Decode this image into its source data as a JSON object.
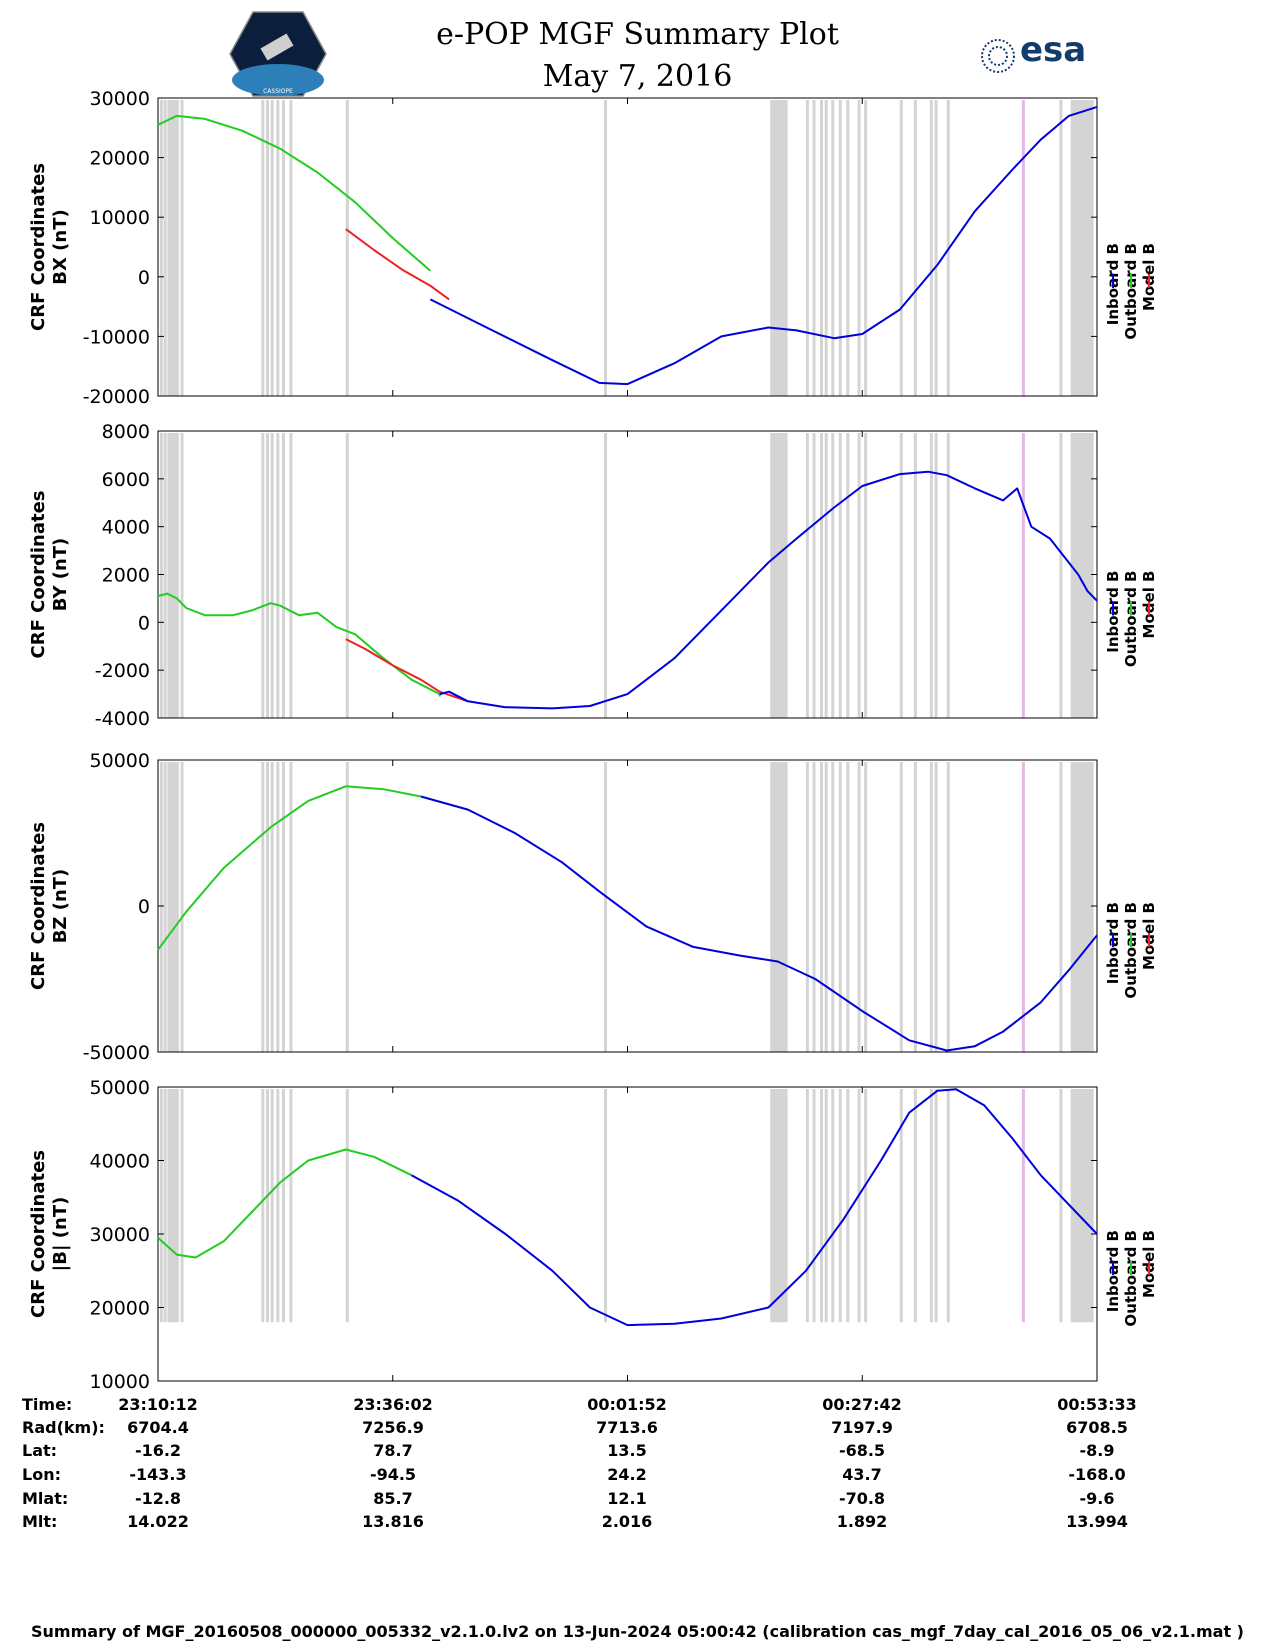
{
  "title": {
    "line1": "e-POP MGF Summary Plot",
    "line2": "May 7, 2016",
    "esa_logo_text": "esa",
    "cassiope_logo_text": "CASSIOPE"
  },
  "colors": {
    "inboard": "#0000dd",
    "outboard": "#22cc22",
    "model": "#ee2222",
    "gap": "#d4d4d4",
    "gap_highlight": "#e5b8e5"
  },
  "chart_data": [
    {
      "type": "line",
      "panel": "BX",
      "ylabel_line1": "CRF Coordinates",
      "ylabel_line2": "BX (nT)",
      "ylim": [
        -20000,
        30000
      ],
      "yticks": [
        "30000",
        "20000",
        "10000",
        "0",
        "-10000",
        "-20000"
      ],
      "ytick_values": [
        30000,
        20000,
        10000,
        0,
        -10000,
        -20000
      ],
      "legend": [
        "Inboard B",
        "Outboard B",
        "Model B"
      ],
      "series": [
        {
          "name": "Outboard B",
          "x": [
            0.0,
            0.02,
            0.05,
            0.09,
            0.13,
            0.17,
            0.21,
            0.25,
            0.29
          ],
          "values": [
            25500,
            27000,
            26500,
            24500,
            21500,
            17500,
            12500,
            6500,
            1000
          ]
        },
        {
          "name": "Model B",
          "x": [
            0.2,
            0.23,
            0.26,
            0.29,
            0.31
          ],
          "values": [
            8000,
            4500,
            1200,
            -1500,
            -3800
          ]
        },
        {
          "name": "Inboard B",
          "x": [
            0.29,
            0.35,
            0.42,
            0.47,
            0.5,
            0.55,
            0.6,
            0.65,
            0.68,
            0.72,
            0.75,
            0.79,
            0.83,
            0.87,
            0.91,
            0.94,
            0.97,
            1.0
          ],
          "values": [
            -3800,
            -8500,
            -14000,
            -17800,
            -18000,
            -14500,
            -10000,
            -8500,
            -9000,
            -10300,
            -9600,
            -5500,
            2000,
            11000,
            18000,
            23000,
            27000,
            28500
          ]
        }
      ]
    },
    {
      "type": "line",
      "panel": "BY",
      "ylabel_line1": "CRF Coordinates",
      "ylabel_line2": "BY (nT)",
      "ylim": [
        -4000,
        8000
      ],
      "yticks": [
        "8000",
        "6000",
        "4000",
        "2000",
        "0",
        "-2000",
        "-4000"
      ],
      "ytick_values": [
        8000,
        6000,
        4000,
        2000,
        0,
        -2000,
        -4000
      ],
      "legend": [
        "Inboard B",
        "Outboard B",
        "Model B"
      ],
      "series": [
        {
          "name": "Outboard B",
          "x": [
            0.0,
            0.01,
            0.02,
            0.03,
            0.05,
            0.08,
            0.1,
            0.12,
            0.13,
            0.15,
            0.17,
            0.19,
            0.21,
            0.24,
            0.27,
            0.3,
            0.3
          ],
          "values": [
            1100,
            1200,
            1000,
            600,
            300,
            300,
            500,
            800,
            700,
            300,
            400,
            -200,
            -500,
            -1500,
            -2400,
            -3000,
            -3100
          ]
        },
        {
          "name": "Model B",
          "x": [
            0.2,
            0.22,
            0.25,
            0.28,
            0.3,
            0.33
          ],
          "values": [
            -700,
            -1100,
            -1800,
            -2400,
            -2900,
            -3300
          ]
        },
        {
          "name": "Inboard B",
          "x": [
            0.3,
            0.31,
            0.33,
            0.37,
            0.42,
            0.46,
            0.5,
            0.55,
            0.6,
            0.65,
            0.68,
            0.72,
            0.75,
            0.79,
            0.82,
            0.84,
            0.87,
            0.9,
            0.915,
            0.93,
            0.95,
            0.98,
            0.99,
            1.0
          ],
          "values": [
            -3000,
            -2900,
            -3300,
            -3550,
            -3600,
            -3500,
            -3000,
            -1500,
            500,
            2500,
            3500,
            4800,
            5700,
            6200,
            6300,
            6150,
            5600,
            5100,
            5600,
            4000,
            3500,
            2000,
            1300,
            900
          ]
        }
      ]
    },
    {
      "type": "line",
      "panel": "BZ",
      "ylabel_line1": "CRF Coordinates",
      "ylabel_line2": "BZ (nT)",
      "ylim": [
        -50000,
        50000
      ],
      "yticks": [
        "50000",
        "0",
        "-50000"
      ],
      "ytick_values": [
        50000,
        0,
        -50000
      ],
      "legend": [
        "Inboard B",
        "Outboard B",
        "Model B"
      ],
      "series": [
        {
          "name": "Outboard B",
          "x": [
            0.0,
            0.03,
            0.07,
            0.12,
            0.16,
            0.2,
            0.24,
            0.28
          ],
          "values": [
            -15000,
            -2000,
            13000,
            27000,
            36000,
            41000,
            40000,
            37500
          ]
        },
        {
          "name": "Inboard B",
          "x": [
            0.28,
            0.33,
            0.38,
            0.43,
            0.47,
            0.52,
            0.57,
            0.62,
            0.66,
            0.7,
            0.75,
            0.8,
            0.84,
            0.87,
            0.9,
            0.94,
            0.97,
            1.0
          ],
          "values": [
            37500,
            33000,
            25000,
            15000,
            5000,
            -7000,
            -14000,
            -17000,
            -19000,
            -25000,
            -36000,
            -46000,
            -49500,
            -48000,
            -43000,
            -33000,
            -22000,
            -10000
          ]
        }
      ]
    },
    {
      "type": "line",
      "panel": "|B|",
      "ylabel_line1": "CRF Coordinates",
      "ylabel_line2": "|B| (nT)",
      "ylim": [
        10000,
        50000
      ],
      "yticks": [
        "50000",
        "40000",
        "30000",
        "20000",
        "10000"
      ],
      "ytick_values": [
        50000,
        40000,
        30000,
        20000,
        10000
      ],
      "legend": [
        "Inboard B",
        "Outboard B",
        "Model B"
      ],
      "series": [
        {
          "name": "Outboard B",
          "x": [
            0.0,
            0.02,
            0.04,
            0.07,
            0.1,
            0.13,
            0.16,
            0.2,
            0.23,
            0.27
          ],
          "values": [
            29500,
            27200,
            26800,
            29000,
            33000,
            37000,
            40000,
            41500,
            40500,
            38000
          ]
        },
        {
          "name": "Inboard B",
          "x": [
            0.27,
            0.32,
            0.37,
            0.42,
            0.46,
            0.5,
            0.55,
            0.6,
            0.65,
            0.69,
            0.73,
            0.77,
            0.8,
            0.83,
            0.85,
            0.88,
            0.91,
            0.94,
            0.97,
            1.0
          ],
          "values": [
            38000,
            34500,
            30000,
            25000,
            20000,
            17600,
            17800,
            18500,
            20000,
            25000,
            32000,
            40000,
            46500,
            49500,
            49700,
            47500,
            43000,
            38000,
            34000,
            30000
          ]
        }
      ]
    }
  ],
  "gap_bands": [
    0.002,
    0.006,
    0.01,
    0.013,
    0.016,
    0.019,
    0.024,
    0.11,
    0.115,
    0.12,
    0.126,
    0.132,
    0.14,
    0.2,
    0.475,
    0.652,
    0.658,
    0.662,
    0.69,
    0.697,
    0.705,
    0.71,
    0.717,
    0.725,
    0.733,
    0.745,
    0.752,
    0.79,
    0.805,
    0.822,
    0.827,
    0.84,
    0.92,
    0.96,
    0.972,
    0.98,
    0.988
  ],
  "info_table": {
    "row_labels": [
      "Time:",
      "Rad(km):",
      "Lat:",
      "Lon:",
      "Mlat:",
      "Mlt:"
    ],
    "columns": [
      [
        "23:10:12",
        "6704.4",
        "-16.2",
        "-143.3",
        "-12.8",
        "14.022"
      ],
      [
        "23:36:02",
        "7256.9",
        "78.7",
        "-94.5",
        "85.7",
        "13.816"
      ],
      [
        "00:01:52",
        "7713.6",
        "13.5",
        "24.2",
        "12.1",
        "2.016"
      ],
      [
        "00:27:42",
        "7197.9",
        "-68.5",
        "43.7",
        "-70.8",
        "1.892"
      ],
      [
        "00:53:33",
        "6708.5",
        "-8.9",
        "-168.0",
        "-9.6",
        "13.994"
      ]
    ]
  },
  "footer": "Summary of MGF_20160508_000000_005332_v2.1.0.lv2 on 13-Jun-2024 05:00:42 (calibration cas_mgf_7day_cal_2016_05_06_v2.1.mat )"
}
